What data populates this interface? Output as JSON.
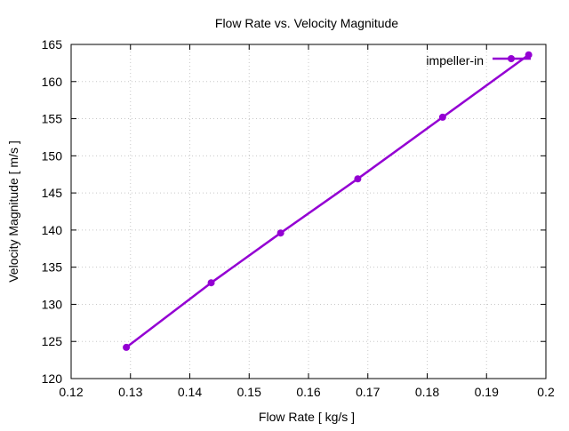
{
  "chart_data": {
    "type": "line",
    "title": "Flow Rate vs. Velocity Magnitude",
    "xlabel": "Flow Rate [ kg/s ]",
    "ylabel": "Velocity Magnitude [ m/s ]",
    "xlim": [
      0.12,
      0.2
    ],
    "ylim": [
      120,
      165
    ],
    "xticks": [
      0.12,
      0.13,
      0.14,
      0.15,
      0.16,
      0.17,
      0.18,
      0.19,
      0.2
    ],
    "xtick_labels": [
      "0.12",
      "0.13",
      "0.14",
      "0.15",
      "0.16",
      "0.17",
      "0.18",
      "0.19",
      "0.2"
    ],
    "yticks": [
      120,
      125,
      130,
      135,
      140,
      145,
      150,
      155,
      160,
      165
    ],
    "ytick_labels": [
      "120",
      "125",
      "130",
      "135",
      "140",
      "145",
      "150",
      "155",
      "160",
      "165"
    ],
    "grid": true,
    "legend_position": "top-right",
    "series": [
      {
        "name": "impeller-in",
        "color": "#9400d3",
        "marker": "circle",
        "x": [
          0.1293,
          0.1436,
          0.1553,
          0.1683,
          0.1826,
          0.1971
        ],
        "y": [
          124.2,
          132.9,
          139.6,
          146.9,
          155.2,
          163.6
        ]
      }
    ]
  }
}
